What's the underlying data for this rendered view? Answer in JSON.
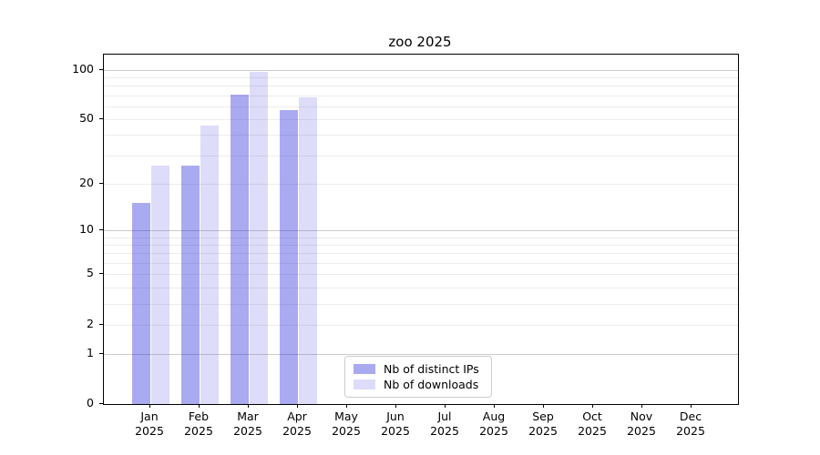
{
  "title": "zoo 2025",
  "chart_data": {
    "type": "bar",
    "title": "zoo 2025",
    "xlabel": "",
    "ylabel": "",
    "categories": [
      "Jan",
      "Feb",
      "Mar",
      "Apr",
      "May",
      "Jun",
      "Jul",
      "Aug",
      "Sep",
      "Oct",
      "Nov",
      "Dec"
    ],
    "category_year": "2025",
    "series": [
      {
        "name": "Nb of distinct IPs",
        "color": "rgba(20,20,215,0.36)",
        "values": [
          15,
          26,
          71,
          57,
          null,
          null,
          null,
          null,
          null,
          null,
          null,
          null
        ]
      },
      {
        "name": "Nb of downloads",
        "color": "rgba(20,20,215,0.145)",
        "values": [
          26,
          46,
          97,
          68,
          null,
          null,
          null,
          null,
          null,
          null,
          null,
          null
        ]
      }
    ],
    "yscale": "log10(value+1)",
    "ylim": [
      0,
      124
    ],
    "yticks": [
      0,
      1,
      2,
      5,
      10,
      20,
      50,
      100
    ],
    "minor_gridlines": [
      2,
      3,
      4,
      5,
      6,
      7,
      8,
      9,
      20,
      30,
      40,
      50,
      60,
      70,
      80,
      90
    ],
    "major_gridlines": [
      1,
      10,
      100
    ],
    "grid": true,
    "legend_position": "lower center",
    "legend_labels": [
      "Nb of distinct IPs",
      "Nb of downloads"
    ]
  },
  "colors": {
    "axis": "#000000",
    "minor_grid": "#ececec",
    "major_grid": "#cccccc",
    "background": "#ffffff",
    "legend_border": "#cccccc"
  }
}
